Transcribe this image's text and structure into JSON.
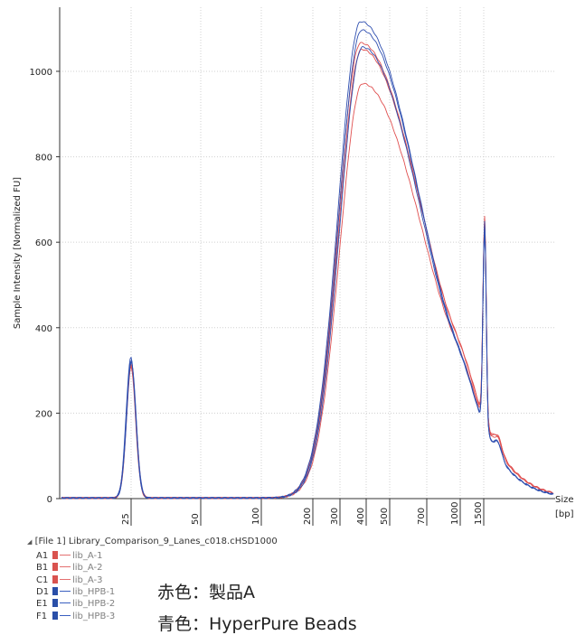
{
  "chart_data": {
    "type": "line",
    "title": "",
    "xlabel": "Size [bp]",
    "x_axis_label_line1": "Size",
    "x_axis_label_line2": "[bp]",
    "ylabel": "Sample Intensity [Normalized FU]",
    "ylim": [
      0,
      1150
    ],
    "yticks": [
      "0",
      "200",
      "400",
      "600",
      "800",
      "1000"
    ],
    "ladder_ticks": [
      "25",
      "50",
      "100",
      "200",
      "300",
      "400",
      "500",
      "700",
      "1000",
      "1500"
    ],
    "grid": true,
    "series": [
      {
        "name": "lib_A-1",
        "color": "#e05050",
        "peak": 1065,
        "marker": 497,
        "lower": 308
      },
      {
        "name": "lib_A-2",
        "color": "#e05050",
        "peak": 1050,
        "marker": 495,
        "lower": 310
      },
      {
        "name": "lib_A-3",
        "color": "#e05050",
        "peak": 970,
        "marker": 490,
        "lower": 312
      },
      {
        "name": "lib_HPB-1",
        "color": "#2f4fb0",
        "peak": 1115,
        "marker": 500,
        "lower": 328
      },
      {
        "name": "lib_HPB-2",
        "color": "#2f4fb0",
        "peak": 1095,
        "marker": 495,
        "lower": 320
      },
      {
        "name": "lib_HPB-3",
        "color": "#2f4fb0",
        "peak": 1055,
        "marker": 492,
        "lower": 318
      }
    ]
  },
  "legend": {
    "title": "[File 1] Library_Comparison_9_Lanes_c018.cHSD1000",
    "expander": "◢",
    "rows": [
      {
        "well": "A1",
        "name": "lib_A-1",
        "swatch": "#d9534f",
        "line": "#e47070"
      },
      {
        "well": "B1",
        "name": "lib_A-2",
        "swatch": "#d9534f",
        "line": "#e47070"
      },
      {
        "well": "C1",
        "name": "lib_A-3",
        "swatch": "#d9534f",
        "line": "#e47070"
      },
      {
        "well": "D1",
        "name": "lib_HPB-1",
        "swatch": "#2a4fa8",
        "line": "#3a5fc0"
      },
      {
        "well": "E1",
        "name": "lib_HPB-2",
        "swatch": "#2a4fa8",
        "line": "#3a5fc0"
      },
      {
        "well": "F1",
        "name": "lib_HPB-3",
        "swatch": "#2a4fa8",
        "line": "#3a5fc0"
      }
    ]
  },
  "notes": {
    "red": "赤色：製品A",
    "blue": "青色：HyperPure Beads"
  }
}
